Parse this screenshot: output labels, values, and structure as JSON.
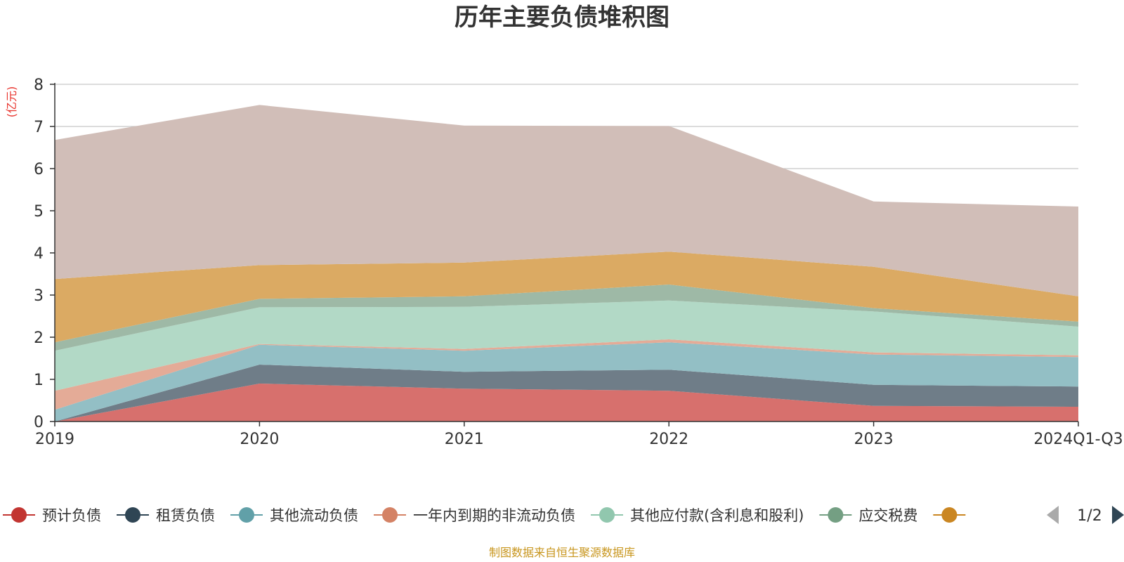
{
  "chart_data": {
    "type": "area",
    "stacked": true,
    "title": "历年主要负债堆积图",
    "y_unit_label": "(亿元)",
    "categories": [
      "2019",
      "2020",
      "2021",
      "2022",
      "2023",
      "2024Q1-Q3"
    ],
    "ylim": [
      0,
      8
    ],
    "yticks": [
      "0",
      "1",
      "2",
      "3",
      "4",
      "5",
      "6",
      "7",
      "8"
    ],
    "grid": true,
    "series": [
      {
        "name": "预计负债",
        "color": "#c23531",
        "fill": "#d7706d",
        "values": [
          0.0,
          0.9,
          0.78,
          0.73,
          0.37,
          0.35
        ]
      },
      {
        "name": "租赁负债",
        "color": "#2f4554",
        "fill": "#6f7d88",
        "values": [
          0.0,
          0.45,
          0.4,
          0.5,
          0.5,
          0.48
        ]
      },
      {
        "name": "其他流动负债",
        "color": "#61a0a8",
        "fill": "#93bfc5",
        "values": [
          0.28,
          0.47,
          0.5,
          0.65,
          0.72,
          0.7
        ]
      },
      {
        "name": "一年内到期的非流动负债",
        "color": "#d48265",
        "fill": "#e4ab97",
        "values": [
          0.45,
          0.02,
          0.04,
          0.07,
          0.05,
          0.04
        ]
      },
      {
        "name": "其他应付款(含利息和股利)",
        "color": "#91c7ae",
        "fill": "#b2d9c6",
        "values": [
          0.95,
          0.87,
          1.0,
          0.92,
          0.97,
          0.68
        ]
      },
      {
        "name": "应交税费",
        "color": "#749f83",
        "fill": "#9eb9a6",
        "values": [
          0.2,
          0.2,
          0.25,
          0.38,
          0.08,
          0.12
        ]
      },
      {
        "name": "",
        "color": "#ca8622",
        "fill": "#dbaa63",
        "values": [
          1.5,
          0.8,
          0.8,
          0.78,
          0.98,
          0.6
        ]
      },
      {
        "name": "",
        "color": "#bda29a",
        "fill": "#d1beb8",
        "values": [
          3.3,
          3.8,
          3.25,
          2.98,
          1.55,
          2.13
        ]
      }
    ],
    "legend": {
      "placement": "bottom",
      "page": "1/2"
    }
  },
  "footer": {
    "source": "制图数据来自恒生聚源数据库"
  }
}
